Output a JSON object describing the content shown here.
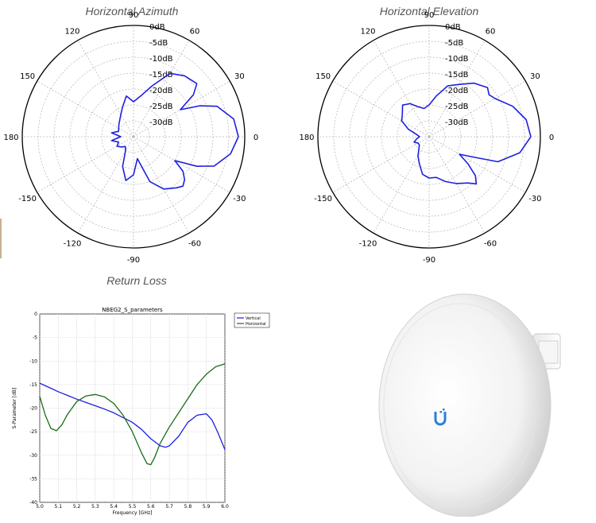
{
  "titles": {
    "azimuth": "Horizontal Azimuth",
    "elevation": "Horizontal Elevation",
    "return_loss": "Return Loss"
  },
  "colors": {
    "blue": "#1f1fe0",
    "green": "#1a6b1a",
    "grid": "#bbbbbb"
  },
  "product_image": "white-dish-antenna",
  "chart_data": [
    {
      "type": "polar",
      "title": "Horizontal Azimuth",
      "angle_ticks": [
        "0",
        "30",
        "60",
        "90",
        "120",
        "150",
        "180",
        "-150",
        "-120",
        "-90",
        "-60",
        "-30"
      ],
      "radial_ticks": [
        "0dB",
        "-5dB",
        "-10dB",
        "-15dB",
        "-20dB",
        "-25dB",
        "-30dB"
      ],
      "rlim": [
        -35,
        0
      ],
      "series": [
        {
          "color": "#1f1fe0",
          "theta": [
            0,
            10,
            20,
            25,
            30,
            35,
            40,
            50,
            60,
            70,
            80,
            90,
            100,
            110,
            120,
            140,
            160,
            170,
            180,
            190,
            200,
            210,
            220,
            230,
            240,
            250,
            260,
            270,
            280,
            290,
            300,
            310,
            315,
            320,
            325,
            330,
            335,
            340,
            350,
            360
          ],
          "r": [
            -2,
            -3,
            -7,
            -12,
            -18,
            -12,
            -9,
            -10,
            -12,
            -18,
            -22,
            -24,
            -22,
            -25,
            -27,
            -29,
            -30,
            -28,
            -31,
            -28,
            -30,
            -29,
            -30,
            -31,
            -30,
            -25,
            -21,
            -23,
            -28,
            -20,
            -16,
            -14,
            -13,
            -14,
            -16,
            -20,
            -13,
            -8,
            -4,
            -2
          ]
        }
      ]
    },
    {
      "type": "polar",
      "title": "Horizontal Elevation",
      "angle_ticks": [
        "0",
        "30",
        "60",
        "90",
        "120",
        "150",
        "180",
        "-150",
        "-120",
        "-90",
        "-60",
        "-30"
      ],
      "radial_ticks": [
        "0dB",
        "-5dB",
        "-10dB",
        "-15dB",
        "-20dB",
        "-25dB",
        "-30dB"
      ],
      "rlim": [
        -35,
        0
      ],
      "series": [
        {
          "color": "#1f1fe0",
          "theta": [
            0,
            10,
            20,
            30,
            35,
            40,
            50,
            60,
            70,
            80,
            90,
            100,
            110,
            120,
            130,
            140,
            150,
            160,
            170,
            180,
            190,
            200,
            210,
            220,
            230,
            240,
            250,
            260,
            270,
            280,
            290,
            300,
            310,
            315,
            320,
            325,
            330,
            335,
            340,
            350,
            360
          ],
          "r": [
            -3,
            -4,
            -7,
            -11,
            -12,
            -11,
            -13,
            -16,
            -18,
            -22,
            -25,
            -26,
            -25,
            -23,
            -22,
            -24,
            -25,
            -28,
            -31,
            -32,
            -31,
            -30,
            -31,
            -31,
            -30,
            -28,
            -26,
            -23,
            -22,
            -22,
            -20,
            -18,
            -16,
            -14,
            -16,
            -20,
            -24,
            -20,
            -12,
            -6,
            -3
          ]
        }
      ]
    },
    {
      "type": "line",
      "title": "NBEG2_S_parameters",
      "xlabel": "Frequency [GHz]",
      "ylabel": "S-Parameter [dB]",
      "xlim": [
        5.0,
        6.0
      ],
      "ylim": [
        -40,
        0
      ],
      "xticks": [
        "5.0",
        "5.1",
        "5.2",
        "5.3",
        "5.4",
        "5.5",
        "5.6",
        "5.7",
        "5.8",
        "5.9",
        "6.0"
      ],
      "yticks": [
        "0",
        "-5",
        "-10",
        "-15",
        "-20",
        "-25",
        "-30",
        "-35",
        "-40"
      ],
      "grid": true,
      "legend_position": "outside-top-right",
      "series": [
        {
          "name": "Vertical",
          "color": "#1f1fe0",
          "x": [
            5.0,
            5.05,
            5.1,
            5.15,
            5.2,
            5.25,
            5.3,
            5.35,
            5.4,
            5.45,
            5.5,
            5.55,
            5.6,
            5.65,
            5.68,
            5.7,
            5.75,
            5.8,
            5.85,
            5.9,
            5.93,
            5.96,
            6.0
          ],
          "y": [
            -14.7,
            -15.6,
            -16.5,
            -17.3,
            -18.1,
            -18.8,
            -19.5,
            -20.2,
            -21.0,
            -22.0,
            -23.0,
            -24.5,
            -26.5,
            -28.0,
            -28.3,
            -28.0,
            -26.0,
            -23.0,
            -21.5,
            -21.2,
            -22.5,
            -25.0,
            -28.8
          ]
        },
        {
          "name": "Horizontal",
          "color": "#1a6b1a",
          "x": [
            5.0,
            5.03,
            5.06,
            5.09,
            5.12,
            5.15,
            5.2,
            5.25,
            5.3,
            5.35,
            5.4,
            5.45,
            5.5,
            5.55,
            5.58,
            5.6,
            5.62,
            5.65,
            5.7,
            5.75,
            5.8,
            5.85,
            5.9,
            5.95,
            6.0
          ],
          "y": [
            -17.5,
            -21.5,
            -24.3,
            -24.8,
            -23.5,
            -21.3,
            -18.6,
            -17.4,
            -17.1,
            -17.6,
            -19.0,
            -21.5,
            -25.0,
            -29.5,
            -31.8,
            -32.0,
            -30.5,
            -27.5,
            -24.0,
            -21.0,
            -18.0,
            -15.0,
            -12.8,
            -11.2,
            -10.6
          ]
        }
      ]
    }
  ]
}
